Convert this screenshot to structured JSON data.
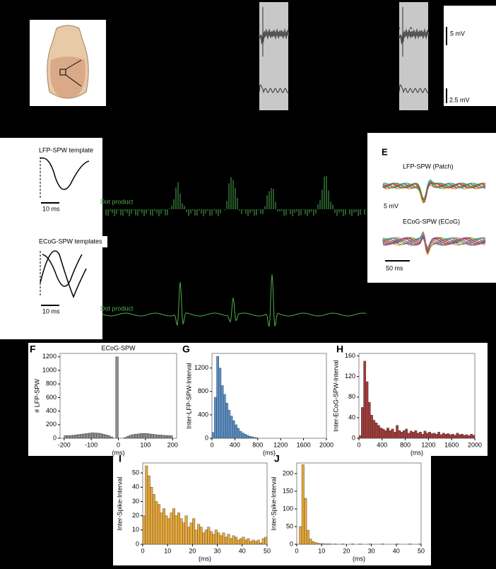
{
  "figure": {
    "lfp_template": "LFP-SPW template",
    "lfp_template_scale": "10 ms",
    "ecog_templates": "ECoG-SPW templates",
    "ecog_templates_scale": "10 ms",
    "dot_product_1": "Dot product",
    "dot_product_2": "Dot product",
    "top_scale_1": "5 mV",
    "top_scale_2": "2.5 mV",
    "panel_e": "E",
    "e_title_1": "LFP-SPW (Patch)",
    "e_scale_v": "5 mV",
    "e_title_2": "ECoG-SPW (ECoG)",
    "e_scale_t": "50 ms"
  },
  "chart_data": [
    {
      "type": "histogram",
      "panel": "F",
      "title": "ECoG-SPW",
      "ylabel": "# LFP-SPW",
      "xlabel": "(ms)",
      "color": "#8c8c8c",
      "bins": [
        -200,
        -190,
        -180,
        -170,
        -160,
        -150,
        -140,
        -130,
        -120,
        -110,
        -100,
        -90,
        -80,
        -70,
        -60,
        -50,
        -40,
        -30,
        -20,
        -10,
        0,
        10,
        20,
        30,
        40,
        50,
        60,
        70,
        80,
        90,
        100,
        110,
        120,
        130,
        140,
        150,
        160,
        170,
        180,
        190,
        200
      ],
      "counts": [
        40,
        38,
        42,
        45,
        50,
        55,
        60,
        65,
        70,
        75,
        80,
        78,
        75,
        70,
        60,
        50,
        40,
        20,
        0,
        1200,
        0,
        0,
        10,
        30,
        45,
        55,
        60,
        65,
        70,
        72,
        70,
        65,
        60,
        55,
        50,
        48,
        45,
        42,
        40,
        38
      ],
      "xlim": [
        -215,
        215
      ],
      "xticks": [
        -200,
        -100,
        0,
        100,
        200
      ],
      "ylim": [
        0,
        1250
      ],
      "yticks": [
        0,
        200,
        400,
        600,
        800,
        1000,
        1200
      ]
    },
    {
      "type": "histogram",
      "panel": "G",
      "ylabel": "Inter-LFP-SPW-Interval",
      "xlabel": "(ms)",
      "color": "#5b8fc7",
      "bins": [
        0,
        40,
        80,
        120,
        160,
        200,
        240,
        280,
        320,
        360,
        400,
        440,
        480,
        520,
        560,
        600,
        640,
        680,
        720,
        760,
        800
      ],
      "counts": [
        100,
        700,
        1400,
        1200,
        900,
        750,
        600,
        480,
        380,
        300,
        230,
        170,
        120,
        90,
        70,
        50,
        35,
        25,
        15,
        10
      ],
      "xlim": [
        0,
        2000
      ],
      "xticks": [
        0,
        400,
        800,
        1200,
        1600,
        2000
      ],
      "ylim": [
        0,
        1450
      ],
      "yticks": [
        0,
        400,
        800,
        1200
      ]
    },
    {
      "type": "histogram",
      "panel": "H",
      "ylabel": "Inter-ECoG-SPW-Interval",
      "xlabel": "(ms)",
      "color": "#a33a3a",
      "bins": [
        0,
        40,
        80,
        120,
        160,
        200,
        240,
        280,
        320,
        360,
        400,
        440,
        480,
        520,
        560,
        600,
        640,
        680,
        720,
        760,
        800,
        840,
        880,
        920,
        960,
        1000,
        1040,
        1080,
        1120,
        1160,
        1200,
        1240,
        1280,
        1320,
        1360,
        1400,
        1440,
        1480,
        1520,
        1560,
        1600,
        1640,
        1680,
        1720,
        1760,
        1800,
        1840,
        1880,
        1920,
        1960,
        2000
      ],
      "counts": [
        5,
        60,
        150,
        110,
        70,
        45,
        35,
        30,
        25,
        20,
        18,
        15,
        20,
        15,
        18,
        12,
        25,
        15,
        12,
        15,
        18,
        10,
        14,
        12,
        15,
        10,
        12,
        8,
        14,
        10,
        12,
        9,
        10,
        8,
        12,
        7,
        10,
        8,
        9,
        7,
        8,
        6,
        10,
        7,
        8,
        6,
        7,
        5,
        8,
        6
      ],
      "xlim": [
        0,
        2000
      ],
      "xticks": [
        0,
        400,
        800,
        1200,
        1600,
        2000
      ],
      "ylim": [
        0,
        165
      ],
      "yticks": [
        0,
        40,
        80,
        120,
        160
      ]
    },
    {
      "type": "histogram",
      "panel": "I",
      "ylabel": "Inter-Spike-Interval",
      "xlabel": "(ms)",
      "color": "#e8a93a",
      "bins": [
        0,
        1,
        2,
        3,
        4,
        5,
        6,
        7,
        8,
        9,
        10,
        11,
        12,
        13,
        14,
        15,
        16,
        17,
        18,
        19,
        20,
        21,
        22,
        23,
        24,
        25,
        26,
        27,
        28,
        29,
        30,
        31,
        32,
        33,
        34,
        35,
        36,
        37,
        38,
        39,
        40,
        41,
        42,
        43,
        44,
        45,
        46,
        47,
        48,
        49,
        50
      ],
      "counts": [
        20,
        55,
        48,
        40,
        35,
        30,
        28,
        22,
        25,
        20,
        18,
        22,
        25,
        20,
        22,
        18,
        15,
        20,
        12,
        15,
        18,
        10,
        14,
        12,
        8,
        10,
        12,
        9,
        7,
        10,
        8,
        6,
        8,
        5,
        7,
        4,
        6,
        5,
        3,
        4,
        5,
        3,
        4,
        2,
        3,
        2,
        3,
        1,
        4,
        5
      ],
      "xlim": [
        0,
        50
      ],
      "xticks": [
        0,
        10,
        20,
        30,
        40,
        50
      ],
      "ylim": [
        0,
        57
      ],
      "yticks": [
        0,
        10,
        20,
        30,
        40,
        50
      ]
    },
    {
      "type": "histogram",
      "panel": "J",
      "ylabel": "Inter-Spike-Interval",
      "xlabel": "(ms)",
      "color": "#e8a93a",
      "bins": [
        0,
        1,
        2,
        3,
        4,
        5,
        6,
        7,
        8,
        9,
        10,
        11,
        12,
        13,
        14,
        15,
        16,
        17,
        18,
        19,
        20,
        21,
        22,
        23,
        24,
        25,
        26,
        27,
        28,
        29,
        30,
        31,
        32,
        33,
        34,
        35,
        36,
        37,
        38,
        39,
        40,
        41,
        42,
        43,
        44,
        45,
        46,
        47,
        48,
        49,
        50
      ],
      "counts": [
        0,
        50,
        225,
        130,
        40,
        15,
        8,
        5,
        3,
        2,
        2,
        1,
        1,
        1,
        0,
        1,
        0,
        0,
        1,
        0,
        0,
        0,
        1,
        0,
        0,
        1,
        0,
        0,
        0,
        1,
        0,
        0,
        0,
        0,
        1,
        0,
        0,
        0,
        0,
        0,
        1,
        0,
        0,
        0,
        0,
        1,
        0,
        0,
        0,
        1
      ],
      "xlim": [
        0,
        50
      ],
      "xticks": [
        0,
        10,
        20,
        30,
        40,
        50
      ],
      "ylim": [
        0,
        230
      ],
      "yticks": [
        0,
        50,
        100,
        150,
        200
      ]
    }
  ]
}
